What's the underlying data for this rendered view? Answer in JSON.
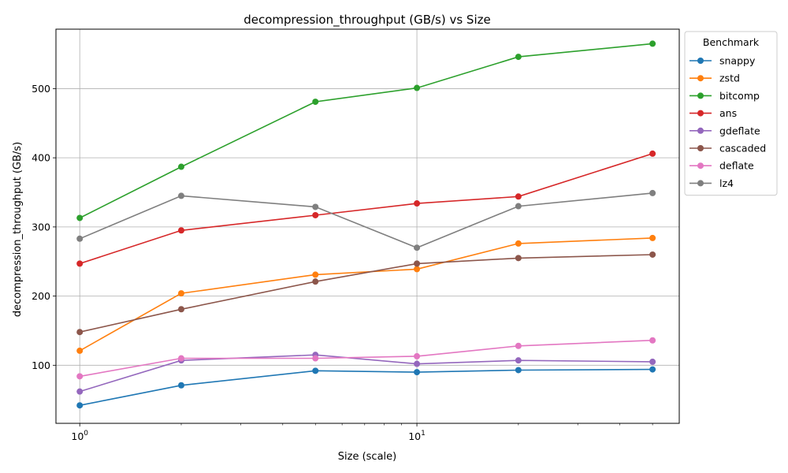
{
  "chart_data": {
    "type": "line",
    "title": "decompression_throughput (GB/s) vs Size",
    "xlabel": "Size (scale)",
    "ylabel": "decompression_throughput (GB/s)",
    "x_scale": "log",
    "xlim": [
      0.85,
      60
    ],
    "ylim": [
      16,
      586
    ],
    "x": [
      1,
      2,
      5,
      10,
      20,
      50
    ],
    "x_ticks": [
      {
        "value": 1,
        "base": "10",
        "exp": "0"
      },
      {
        "value": 10,
        "base": "10",
        "exp": "1"
      }
    ],
    "y_ticks": [
      100,
      200,
      300,
      400,
      500
    ],
    "grid": true,
    "legend": {
      "title": "Benchmark",
      "placement": "outside right, top"
    },
    "series": [
      {
        "name": "snappy",
        "color": "#1f77b4",
        "values": [
          42,
          71,
          92,
          90,
          93,
          94
        ]
      },
      {
        "name": "zstd",
        "color": "#ff7f0e",
        "values": [
          121,
          204,
          231,
          239,
          276,
          284
        ]
      },
      {
        "name": "bitcomp",
        "color": "#2ca02c",
        "values": [
          313,
          387,
          481,
          501,
          546,
          565
        ]
      },
      {
        "name": "ans",
        "color": "#d62728",
        "values": [
          247,
          295,
          317,
          334,
          344,
          406
        ]
      },
      {
        "name": "gdeflate",
        "color": "#9467bd",
        "values": [
          62,
          107,
          115,
          102,
          107,
          105
        ]
      },
      {
        "name": "cascaded",
        "color": "#8c564b",
        "values": [
          148,
          181,
          221,
          247,
          255,
          260
        ]
      },
      {
        "name": "deflate",
        "color": "#e377c2",
        "values": [
          84,
          110,
          110,
          113,
          128,
          136
        ]
      },
      {
        "name": "lz4",
        "color": "#7f7f7f",
        "values": [
          283,
          345,
          329,
          270,
          330,
          349
        ]
      }
    ]
  }
}
